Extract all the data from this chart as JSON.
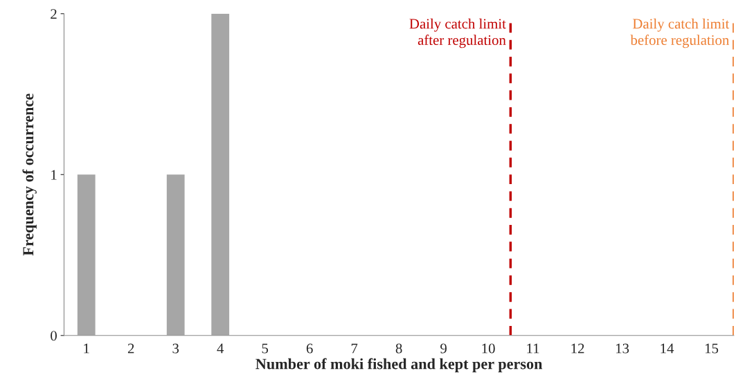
{
  "chart_data": {
    "type": "bar",
    "xlabel": "Number of moki fished and kept per person",
    "ylabel": "Frequency of occurrence",
    "x": [
      1,
      2,
      3,
      4,
      5,
      6,
      7,
      8,
      9,
      10,
      11,
      12,
      13,
      14,
      15
    ],
    "values": [
      1,
      0,
      1,
      2,
      0,
      0,
      0,
      0,
      0,
      0,
      0,
      0,
      0,
      0,
      0
    ],
    "color": "#a6a6a6",
    "xlim": [
      0.5,
      15.5
    ],
    "xticks": [
      1,
      2,
      3,
      4,
      5,
      6,
      7,
      8,
      9,
      10,
      11,
      12,
      13,
      14,
      15
    ],
    "ylim": [
      0,
      2
    ],
    "yticks": [
      0,
      1,
      2
    ],
    "grid": false,
    "legend": false,
    "ref_lines": [
      {
        "axis": "x",
        "value": 10.5,
        "label": "Daily catch limit\nafter regulation",
        "color": "#c00000",
        "line_style": "dashed"
      },
      {
        "axis": "x",
        "value": 15.5,
        "label": "Daily catch limit\nbefore regulation",
        "color": "#ed7d31",
        "line_style": "dashed"
      }
    ]
  }
}
